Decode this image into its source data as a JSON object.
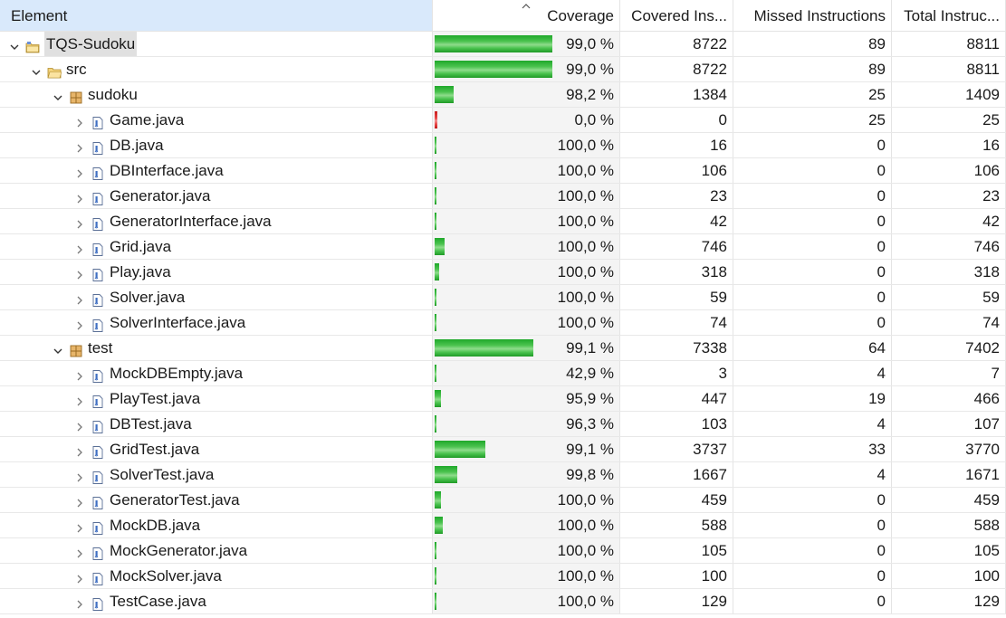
{
  "columns": [
    "Element",
    "Coverage",
    "Covered Ins...",
    "Missed Instructions",
    "Total Instruc..."
  ],
  "max_total": 8811,
  "rows": [
    {
      "name": "TQS-Sudoku",
      "level": 0,
      "type": "project",
      "expanded": true,
      "selected": true,
      "coverage": "99,0 %",
      "covered": "8722",
      "missed": "89",
      "total": "8811",
      "cov_num": 8722,
      "miss_num": 89
    },
    {
      "name": "src",
      "level": 1,
      "type": "folder",
      "expanded": true,
      "coverage": "99,0 %",
      "covered": "8722",
      "missed": "89",
      "total": "8811",
      "cov_num": 8722,
      "miss_num": 89
    },
    {
      "name": "sudoku",
      "level": 2,
      "type": "package",
      "expanded": true,
      "coverage": "98,2 %",
      "covered": "1384",
      "missed": "25",
      "total": "1409",
      "cov_num": 1384,
      "miss_num": 25
    },
    {
      "name": "Game.java",
      "level": 3,
      "type": "file",
      "coverage": "0,0 %",
      "covered": "0",
      "missed": "25",
      "total": "25",
      "cov_num": 0,
      "miss_num": 25
    },
    {
      "name": "DB.java",
      "level": 3,
      "type": "file",
      "coverage": "100,0 %",
      "covered": "16",
      "missed": "0",
      "total": "16",
      "cov_num": 16,
      "miss_num": 0
    },
    {
      "name": "DBInterface.java",
      "level": 3,
      "type": "file",
      "coverage": "100,0 %",
      "covered": "106",
      "missed": "0",
      "total": "106",
      "cov_num": 106,
      "miss_num": 0
    },
    {
      "name": "Generator.java",
      "level": 3,
      "type": "file",
      "coverage": "100,0 %",
      "covered": "23",
      "missed": "0",
      "total": "23",
      "cov_num": 23,
      "miss_num": 0
    },
    {
      "name": "GeneratorInterface.java",
      "level": 3,
      "type": "file",
      "coverage": "100,0 %",
      "covered": "42",
      "missed": "0",
      "total": "42",
      "cov_num": 42,
      "miss_num": 0
    },
    {
      "name": "Grid.java",
      "level": 3,
      "type": "file",
      "coverage": "100,0 %",
      "covered": "746",
      "missed": "0",
      "total": "746",
      "cov_num": 746,
      "miss_num": 0
    },
    {
      "name": "Play.java",
      "level": 3,
      "type": "file",
      "coverage": "100,0 %",
      "covered": "318",
      "missed": "0",
      "total": "318",
      "cov_num": 318,
      "miss_num": 0
    },
    {
      "name": "Solver.java",
      "level": 3,
      "type": "file",
      "coverage": "100,0 %",
      "covered": "59",
      "missed": "0",
      "total": "59",
      "cov_num": 59,
      "miss_num": 0
    },
    {
      "name": "SolverInterface.java",
      "level": 3,
      "type": "file",
      "coverage": "100,0 %",
      "covered": "74",
      "missed": "0",
      "total": "74",
      "cov_num": 74,
      "miss_num": 0
    },
    {
      "name": "test",
      "level": 2,
      "type": "package",
      "expanded": true,
      "coverage": "99,1 %",
      "covered": "7338",
      "missed": "64",
      "total": "7402",
      "cov_num": 7338,
      "miss_num": 64
    },
    {
      "name": "MockDBEmpty.java",
      "level": 3,
      "type": "file",
      "coverage": "42,9 %",
      "covered": "3",
      "missed": "4",
      "total": "7",
      "cov_num": 3,
      "miss_num": 4
    },
    {
      "name": "PlayTest.java",
      "level": 3,
      "type": "file",
      "coverage": "95,9 %",
      "covered": "447",
      "missed": "19",
      "total": "466",
      "cov_num": 447,
      "miss_num": 19
    },
    {
      "name": "DBTest.java",
      "level": 3,
      "type": "file",
      "coverage": "96,3 %",
      "covered": "103",
      "missed": "4",
      "total": "107",
      "cov_num": 103,
      "miss_num": 4
    },
    {
      "name": "GridTest.java",
      "level": 3,
      "type": "file",
      "coverage": "99,1 %",
      "covered": "3737",
      "missed": "33",
      "total": "3770",
      "cov_num": 3737,
      "miss_num": 33
    },
    {
      "name": "SolverTest.java",
      "level": 3,
      "type": "file",
      "coverage": "99,8 %",
      "covered": "1667",
      "missed": "4",
      "total": "1671",
      "cov_num": 1667,
      "miss_num": 4
    },
    {
      "name": "GeneratorTest.java",
      "level": 3,
      "type": "file",
      "coverage": "100,0 %",
      "covered": "459",
      "missed": "0",
      "total": "459",
      "cov_num": 459,
      "miss_num": 0
    },
    {
      "name": "MockDB.java",
      "level": 3,
      "type": "file",
      "coverage": "100,0 %",
      "covered": "588",
      "missed": "0",
      "total": "588",
      "cov_num": 588,
      "miss_num": 0
    },
    {
      "name": "MockGenerator.java",
      "level": 3,
      "type": "file",
      "coverage": "100,0 %",
      "covered": "105",
      "missed": "0",
      "total": "105",
      "cov_num": 105,
      "miss_num": 0
    },
    {
      "name": "MockSolver.java",
      "level": 3,
      "type": "file",
      "coverage": "100,0 %",
      "covered": "100",
      "missed": "0",
      "total": "100",
      "cov_num": 100,
      "miss_num": 0
    },
    {
      "name": "TestCase.java",
      "level": 3,
      "type": "file",
      "coverage": "100,0 %",
      "covered": "129",
      "missed": "0",
      "total": "129",
      "cov_num": 129,
      "miss_num": 0
    }
  ]
}
